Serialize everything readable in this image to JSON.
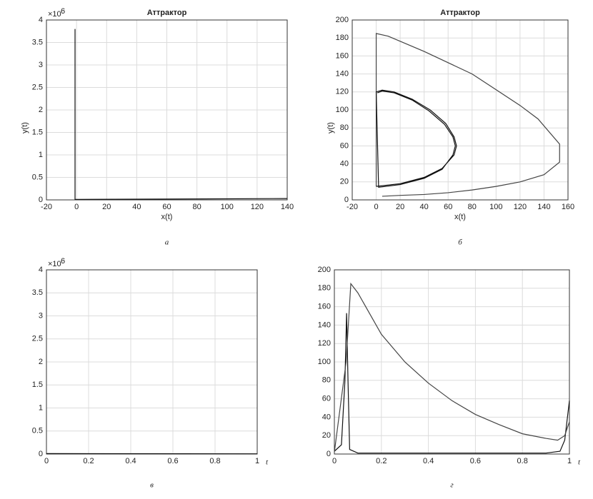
{
  "chart_data": [
    {
      "type": "line",
      "title": "Аттрактор",
      "xlabel": "x(t)",
      "ylabel": "y(t)",
      "caption": "а",
      "y_multiplier": "×10",
      "y_multiplier_exp": 6,
      "xlim": [
        -20,
        140
      ],
      "xticks": [
        -20,
        0,
        20,
        40,
        60,
        80,
        100,
        120,
        140
      ],
      "ylim": [
        0,
        4
      ],
      "yticks": [
        0,
        0.5,
        1,
        1.5,
        2,
        2.5,
        3,
        3.5,
        4
      ],
      "grid": true,
      "series": [
        {
          "color": "#111111",
          "x": [
            -1,
            -1,
            140
          ],
          "values": [
            3.8,
            0.01,
            0.03
          ]
        }
      ]
    },
    {
      "type": "line",
      "title": "Аттрактор",
      "xlabel": "x(t)",
      "ylabel": "y(t)",
      "caption": "б",
      "xlim": [
        -20,
        160
      ],
      "xticks": [
        -20,
        0,
        20,
        40,
        60,
        80,
        100,
        120,
        140,
        160
      ],
      "ylim": [
        0,
        200
      ],
      "yticks": [
        0,
        20,
        40,
        60,
        80,
        100,
        120,
        140,
        160,
        180,
        200
      ],
      "grid": true,
      "series": [
        {
          "color": "#444444",
          "x": [
            5,
            20,
            40,
            60,
            80,
            100,
            120,
            140,
            153,
            153,
            135,
            120,
            80,
            40,
            10,
            0,
            0
          ],
          "values": [
            4,
            5,
            6,
            8,
            11,
            15,
            20,
            28,
            42,
            62,
            90,
            105,
            140,
            165,
            182,
            185,
            15
          ]
        },
        {
          "color": "#111111",
          "x": [
            0,
            20,
            40,
            55,
            65,
            67,
            65,
            58,
            45,
            30,
            15,
            5,
            0,
            2,
            20,
            40,
            55,
            64,
            66,
            64,
            57,
            44,
            30,
            15,
            5,
            1
          ],
          "values": [
            15,
            18,
            25,
            35,
            50,
            60,
            70,
            85,
            100,
            112,
            120,
            122,
            120,
            14,
            17,
            24,
            34,
            50,
            60,
            70,
            84,
            99,
            111,
            119,
            121,
            119
          ]
        }
      ]
    },
    {
      "type": "line",
      "xlabel": "t",
      "caption": "в",
      "y_multiplier": "×10",
      "y_multiplier_exp": 6,
      "xlim": [
        0,
        1
      ],
      "xticks": [
        0,
        0.2,
        0.4,
        0.6,
        0.8,
        1
      ],
      "ylim": [
        0,
        4
      ],
      "yticks": [
        0,
        0.5,
        1,
        1.5,
        2,
        2.5,
        3,
        3.5,
        4
      ],
      "grid": true,
      "series": [
        {
          "color": "#111111",
          "x": [
            0,
            1
          ],
          "values": [
            0.01,
            0.005
          ]
        }
      ]
    },
    {
      "type": "line",
      "xlabel": "t",
      "caption": "г",
      "xlim": [
        0,
        1
      ],
      "xticks": [
        0,
        0.2,
        0.4,
        0.6,
        0.8,
        1
      ],
      "ylim": [
        0,
        200
      ],
      "yticks": [
        0,
        20,
        40,
        60,
        80,
        100,
        120,
        140,
        160,
        180,
        200
      ],
      "grid": true,
      "series": [
        {
          "color": "#111111",
          "x": [
            0,
            0.03,
            0.045,
            0.052,
            0.058,
            0.065,
            0.1,
            0.9,
            0.96,
            0.98,
            1
          ],
          "values": [
            3,
            10,
            80,
            153,
            80,
            5,
            1,
            1,
            3,
            15,
            58
          ]
        },
        {
          "color": "#444444",
          "x": [
            0,
            0.05,
            0.07,
            0.1,
            0.2,
            0.3,
            0.4,
            0.5,
            0.6,
            0.7,
            0.8,
            0.9,
            0.95,
            0.98,
            1
          ],
          "values": [
            2,
            100,
            185,
            175,
            130,
            100,
            77,
            58,
            43,
            32,
            22,
            17,
            15,
            20,
            35
          ]
        }
      ]
    }
  ]
}
